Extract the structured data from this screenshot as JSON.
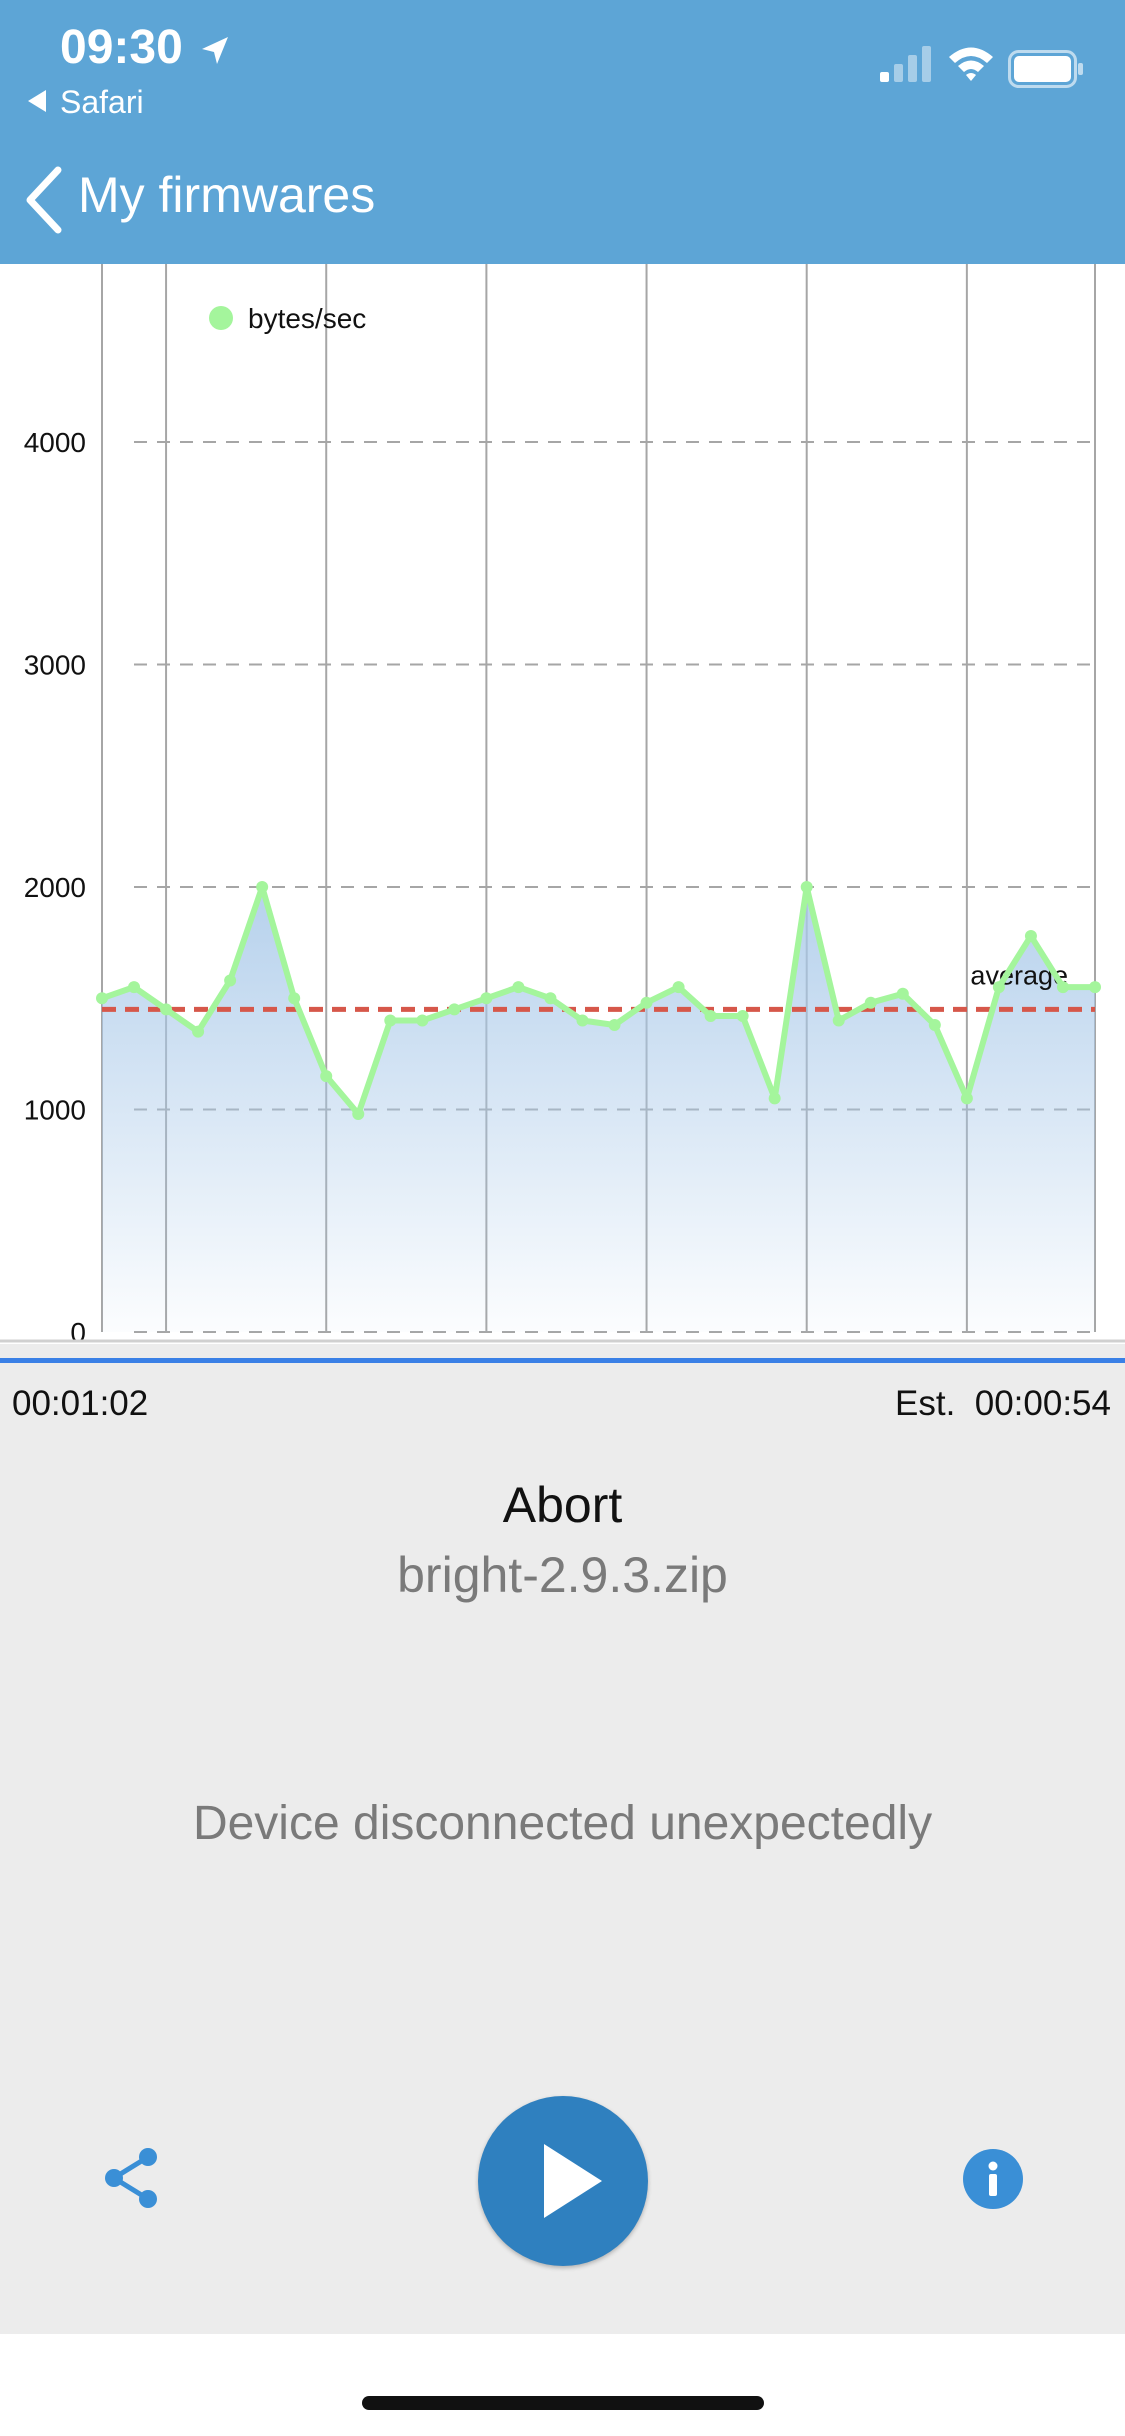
{
  "status_bar": {
    "time": "09:30",
    "back_app": "Safari",
    "icons": [
      "location-arrow-icon",
      "cellular-signal-icon",
      "wifi-icon",
      "battery-icon"
    ]
  },
  "nav": {
    "back_label": "My firmwares",
    "back_icon": "chevron-left-icon"
  },
  "chart_data": {
    "type": "line",
    "series": [
      {
        "name": "bytes/sec",
        "color": "#a4f59c",
        "x": [
          0,
          1,
          2,
          3,
          4,
          5,
          6,
          7,
          8,
          9,
          10,
          11,
          12,
          13,
          14,
          15,
          16,
          17,
          18,
          19,
          20,
          21,
          22,
          23,
          24,
          25,
          26,
          27,
          28,
          29,
          30,
          31
        ],
        "values": [
          1500,
          1550,
          1450,
          1350,
          1580,
          2000,
          1500,
          1150,
          980,
          1400,
          1400,
          1450,
          1500,
          1550,
          1500,
          1400,
          1380,
          1480,
          1550,
          1420,
          1420,
          1050,
          2000,
          1400,
          1480,
          1520,
          1380,
          1050,
          1550,
          1780,
          1550,
          1550
        ]
      }
    ],
    "reference_line": {
      "label": "average",
      "value": 1450,
      "color": "#d6574a"
    },
    "y_ticks": [
      "0",
      "1000",
      "2000",
      "3000",
      "4000"
    ],
    "ylim": [
      0,
      4800
    ],
    "grid": "horizontal dashed",
    "legend": "top-left",
    "area_fill": "#a9c9e9"
  },
  "transfer": {
    "elapsed": "00:01:02",
    "est_label": "Est.",
    "est_value": "00:00:54",
    "progress": 1.0
  },
  "actions": {
    "abort_label": "Abort",
    "filename": "bright-2.9.3.zip",
    "status_message": "Device disconnected unexpectedly"
  },
  "toolbar": {
    "share_icon": "share-icon",
    "play_icon": "play-icon",
    "info_icon": "info-icon",
    "accent": "#3a8fd6"
  }
}
